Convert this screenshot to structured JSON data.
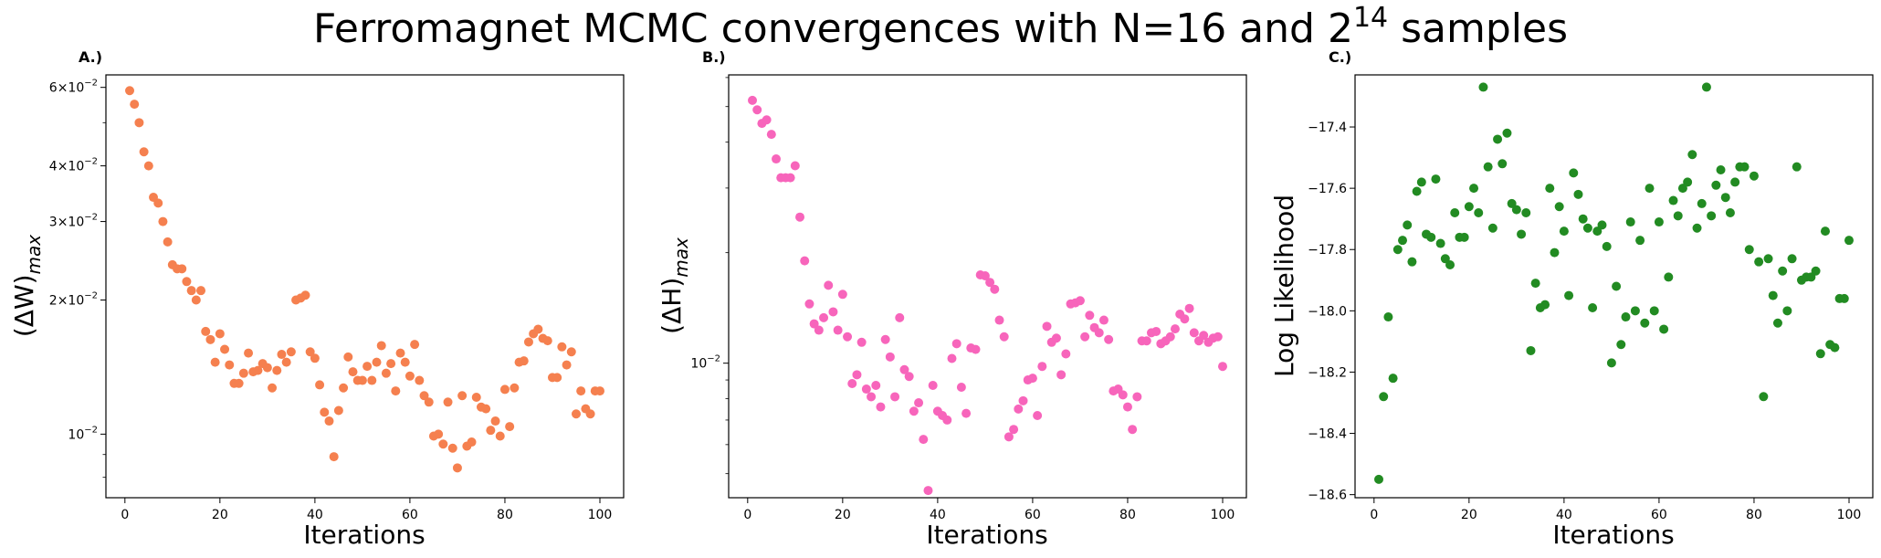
{
  "figure": {
    "title_main": "Ferromagnet MCMC convergences with N=16 and 2",
    "title_sup": "14",
    "title_tail": " samples"
  },
  "chart_data": [
    {
      "type": "scatter",
      "panel_label": "A.)",
      "xlabel": "Iterations",
      "ylabel_main": "(ΔW)",
      "ylabel_sub": "max",
      "yscale": "log",
      "xlim": [
        -4,
        105
      ],
      "ylim": [
        0.0072,
        0.064
      ],
      "xticks": [
        0,
        20,
        40,
        60,
        80,
        100
      ],
      "yticks": [
        {
          "value": 0.01,
          "base": "10",
          "exp": "−2",
          "prefix": ""
        },
        {
          "value": 0.02,
          "base": "10",
          "exp": "−2",
          "prefix": "2×"
        },
        {
          "value": 0.03,
          "base": "10",
          "exp": "−2",
          "prefix": "3×"
        },
        {
          "value": 0.04,
          "base": "10",
          "exp": "−2",
          "prefix": "4×"
        },
        {
          "value": 0.06,
          "base": "10",
          "exp": "−2",
          "prefix": "6×"
        }
      ],
      "color": "#f5804f",
      "x": [
        1,
        2,
        3,
        4,
        5,
        6,
        7,
        8,
        9,
        10,
        11,
        12,
        13,
        14,
        15,
        16,
        17,
        18,
        19,
        20,
        21,
        22,
        23,
        24,
        25,
        26,
        27,
        28,
        29,
        30,
        31,
        32,
        33,
        34,
        35,
        36,
        37,
        38,
        39,
        40,
        41,
        42,
        43,
        44,
        45,
        46,
        47,
        48,
        49,
        50,
        51,
        52,
        53,
        54,
        55,
        56,
        57,
        58,
        59,
        60,
        61,
        62,
        63,
        64,
        65,
        66,
        67,
        68,
        69,
        70,
        71,
        72,
        73,
        74,
        75,
        76,
        77,
        78,
        79,
        80,
        81,
        82,
        83,
        84,
        85,
        86,
        87,
        88,
        89,
        90,
        91,
        92,
        93,
        94,
        95,
        96,
        97,
        98,
        99,
        100
      ],
      "y": [
        0.059,
        0.055,
        0.05,
        0.043,
        0.04,
        0.034,
        0.033,
        0.03,
        0.027,
        0.024,
        0.0235,
        0.0235,
        0.022,
        0.021,
        0.02,
        0.021,
        0.017,
        0.0163,
        0.0145,
        0.0168,
        0.0155,
        0.0143,
        0.013,
        0.013,
        0.0137,
        0.0152,
        0.0138,
        0.0139,
        0.0144,
        0.0141,
        0.0127,
        0.0139,
        0.0151,
        0.0145,
        0.0153,
        0.02,
        0.0202,
        0.0205,
        0.0153,
        0.0148,
        0.0129,
        0.0112,
        0.0107,
        0.0089,
        0.0113,
        0.0127,
        0.0149,
        0.0138,
        0.0132,
        0.0132,
        0.0142,
        0.0132,
        0.0145,
        0.0158,
        0.0137,
        0.0144,
        0.0125,
        0.0152,
        0.0145,
        0.0135,
        0.0159,
        0.0132,
        0.0122,
        0.0118,
        0.0099,
        0.01,
        0.0095,
        0.0118,
        0.0093,
        0.0084,
        0.0122,
        0.0094,
        0.0096,
        0.0121,
        0.0115,
        0.0114,
        0.0102,
        0.0107,
        0.0099,
        0.0126,
        0.0104,
        0.0127,
        0.0145,
        0.0146,
        0.0161,
        0.0168,
        0.0172,
        0.0164,
        0.0162,
        0.0134,
        0.0134,
        0.0157,
        0.0143,
        0.0153,
        0.0111,
        0.0125,
        0.0114,
        0.0111,
        0.0125,
        0.0125
      ]
    },
    {
      "type": "scatter",
      "panel_label": "B.)",
      "xlabel": "Iterations",
      "ylabel_main": "(ΔH)",
      "ylabel_sub": "max",
      "yscale": "log",
      "xlim": [
        -4,
        105
      ],
      "ylim": [
        0.0043,
        0.061
      ],
      "xticks": [
        0,
        20,
        40,
        60,
        80,
        100
      ],
      "yticks": [
        {
          "value": 0.01,
          "base": "10",
          "exp": "−2",
          "prefix": ""
        }
      ],
      "color": "#f765bb",
      "x": [
        1,
        2,
        3,
        4,
        5,
        6,
        7,
        8,
        9,
        10,
        11,
        12,
        13,
        14,
        15,
        16,
        17,
        18,
        19,
        20,
        21,
        22,
        23,
        24,
        25,
        26,
        27,
        28,
        29,
        30,
        31,
        32,
        33,
        34,
        35,
        36,
        37,
        38,
        39,
        40,
        41,
        42,
        43,
        44,
        45,
        46,
        47,
        48,
        49,
        50,
        51,
        52,
        53,
        54,
        55,
        56,
        57,
        58,
        59,
        60,
        61,
        62,
        63,
        64,
        65,
        66,
        67,
        68,
        69,
        70,
        71,
        72,
        73,
        74,
        75,
        76,
        77,
        78,
        79,
        80,
        81,
        82,
        83,
        84,
        85,
        86,
        87,
        88,
        89,
        90,
        91,
        92,
        93,
        94,
        95,
        96,
        97,
        98,
        99,
        100
      ],
      "y": [
        0.052,
        0.049,
        0.045,
        0.046,
        0.042,
        0.036,
        0.032,
        0.032,
        0.032,
        0.0345,
        0.025,
        0.019,
        0.0145,
        0.0128,
        0.0123,
        0.0133,
        0.0163,
        0.0138,
        0.0123,
        0.0154,
        0.0118,
        0.0088,
        0.0093,
        0.0114,
        0.0085,
        0.0081,
        0.0087,
        0.0076,
        0.0116,
        0.0104,
        0.0081,
        0.0133,
        0.0096,
        0.0092,
        0.0074,
        0.0078,
        0.0062,
        0.0045,
        0.0087,
        0.0074,
        0.0072,
        0.007,
        0.0103,
        0.0113,
        0.0086,
        0.0073,
        0.011,
        0.0109,
        0.0174,
        0.0173,
        0.0166,
        0.0159,
        0.0131,
        0.0118,
        0.0063,
        0.0066,
        0.0075,
        0.0079,
        0.009,
        0.0091,
        0.0072,
        0.0098,
        0.0126,
        0.0114,
        0.0117,
        0.0093,
        0.0106,
        0.0145,
        0.0146,
        0.0148,
        0.0118,
        0.0135,
        0.0125,
        0.0121,
        0.0131,
        0.0116,
        0.0084,
        0.0085,
        0.0082,
        0.0076,
        0.0066,
        0.0081,
        0.0115,
        0.0115,
        0.0121,
        0.0122,
        0.0113,
        0.0115,
        0.0118,
        0.0124,
        0.0136,
        0.0132,
        0.0141,
        0.0121,
        0.0115,
        0.0119,
        0.0114,
        0.0117,
        0.0118,
        0.0098
      ]
    },
    {
      "type": "scatter",
      "panel_label": "C.)",
      "xlabel": "Iterations",
      "ylabel_main": "Log Likelihood",
      "ylabel_sub": "",
      "yscale": "linear",
      "xlim": [
        -4,
        105
      ],
      "ylim": [
        -18.61,
        -17.23
      ],
      "xticks": [
        0,
        20,
        40,
        60,
        80,
        100
      ],
      "yticks": [
        {
          "value": -18.6,
          "label": "−18.6"
        },
        {
          "value": -18.4,
          "label": "−18.4"
        },
        {
          "value": -18.2,
          "label": "−18.2"
        },
        {
          "value": -18.0,
          "label": "−18.0"
        },
        {
          "value": -17.8,
          "label": "−17.8"
        },
        {
          "value": -17.6,
          "label": "−17.6"
        },
        {
          "value": -17.4,
          "label": "−17.4"
        }
      ],
      "color": "#228b22",
      "x": [
        1,
        2,
        3,
        4,
        5,
        6,
        7,
        8,
        9,
        10,
        11,
        12,
        13,
        14,
        15,
        16,
        17,
        18,
        19,
        20,
        21,
        22,
        23,
        24,
        25,
        26,
        27,
        28,
        29,
        30,
        31,
        32,
        33,
        34,
        35,
        36,
        37,
        38,
        39,
        40,
        41,
        42,
        43,
        44,
        45,
        46,
        47,
        48,
        49,
        50,
        51,
        52,
        53,
        54,
        55,
        56,
        57,
        58,
        59,
        60,
        61,
        62,
        63,
        64,
        65,
        66,
        67,
        68,
        69,
        70,
        71,
        72,
        73,
        74,
        75,
        76,
        77,
        78,
        79,
        80,
        81,
        82,
        83,
        84,
        85,
        86,
        87,
        88,
        89,
        90,
        91,
        92,
        93,
        94,
        95,
        96,
        97,
        98,
        99,
        100
      ],
      "y": [
        -18.55,
        -18.28,
        -18.02,
        -18.22,
        -17.8,
        -17.77,
        -17.72,
        -17.84,
        -17.61,
        -17.58,
        -17.75,
        -17.76,
        -17.57,
        -17.78,
        -17.83,
        -17.85,
        -17.68,
        -17.76,
        -17.76,
        -17.66,
        -17.6,
        -17.68,
        -17.27,
        -17.53,
        -17.73,
        -17.44,
        -17.52,
        -17.42,
        -17.65,
        -17.67,
        -17.75,
        -17.68,
        -18.13,
        -17.91,
        -17.99,
        -17.98,
        -17.6,
        -17.81,
        -17.66,
        -17.74,
        -17.95,
        -17.55,
        -17.62,
        -17.7,
        -17.73,
        -17.99,
        -17.74,
        -17.72,
        -17.79,
        -18.17,
        -17.92,
        -18.11,
        -18.02,
        -17.71,
        -18.0,
        -17.77,
        -18.04,
        -17.6,
        -18.0,
        -17.71,
        -18.06,
        -17.89,
        -17.64,
        -17.69,
        -17.6,
        -17.58,
        -17.49,
        -17.73,
        -17.65,
        -17.27,
        -17.69,
        -17.59,
        -17.54,
        -17.63,
        -17.68,
        -17.58,
        -17.53,
        -17.53,
        -17.8,
        -17.56,
        -17.84,
        -18.28,
        -17.83,
        -17.95,
        -18.04,
        -17.87,
        -18.0,
        -17.83,
        -17.53,
        -17.9,
        -17.89,
        -17.89,
        -17.87,
        -18.14,
        -17.74,
        -18.11,
        -18.12,
        -17.96,
        -17.96,
        -17.77
      ]
    }
  ]
}
